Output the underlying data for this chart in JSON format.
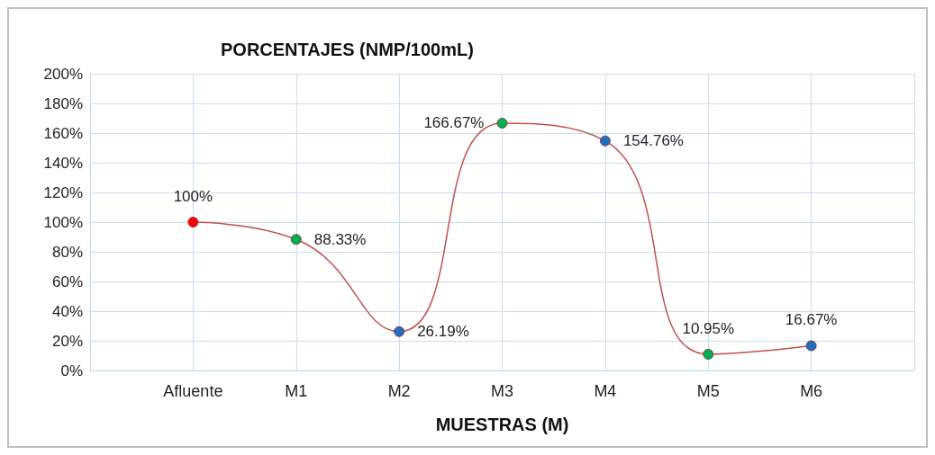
{
  "chart_data": {
    "type": "line",
    "title": "PORCENTAJES (NMP/100mL)",
    "xlabel": "MUESTRAS (M)",
    "categories": [
      null,
      "Afluente",
      "M1",
      "M2",
      "M3",
      "M4",
      "M5",
      "M6",
      null
    ],
    "series": [
      {
        "color": "#c0504d",
        "values": [
          null,
          100,
          88.33,
          26.19,
          166.67,
          154.76,
          10.95,
          16.67,
          null
        ],
        "colors": [
          null,
          "#ff0000",
          "#00b050",
          "#1f6fc0",
          "#00b050",
          "#1f6fc0",
          "#00b050",
          "#1f6fc0",
          null
        ],
        "value_labels": [
          null,
          "100%",
          "88.33%",
          "26.19%",
          "166.67%",
          "154.76%",
          "10.95%",
          "16.67%",
          null
        ]
      }
    ],
    "ylim": [
      0,
      200
    ],
    "yticks": [
      {
        "value": 0,
        "label": "0%"
      },
      {
        "value": 20,
        "label": "20%"
      },
      {
        "value": 40,
        "label": "40%"
      },
      {
        "value": 60,
        "label": "60%"
      },
      {
        "value": 80,
        "label": "80%"
      },
      {
        "value": 100,
        "label": "100%"
      },
      {
        "value": 120,
        "label": "120%"
      },
      {
        "value": 140,
        "label": "140%"
      },
      {
        "value": 160,
        "label": "160%"
      },
      {
        "value": 180,
        "label": "180%"
      },
      {
        "value": 200,
        "label": "200%"
      }
    ],
    "grid": true,
    "marker": "circle",
    "line_style": "solid"
  }
}
